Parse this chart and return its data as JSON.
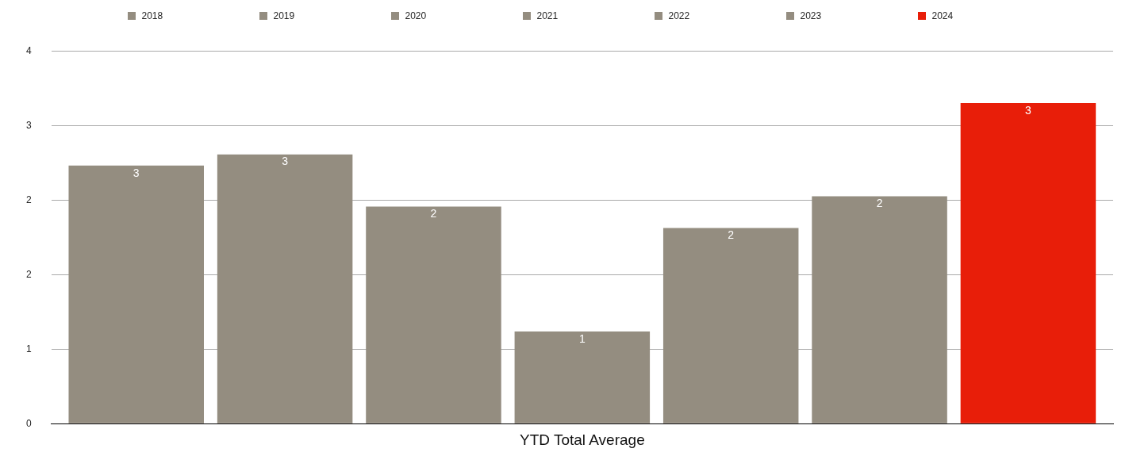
{
  "chart_data": {
    "type": "bar",
    "categories": [
      "YTD Total Average"
    ],
    "series": [
      {
        "name": "2018",
        "color": "#948d80",
        "values": [
          2.77
        ],
        "value_labels": [
          "3"
        ]
      },
      {
        "name": "2019",
        "color": "#948d80",
        "values": [
          2.89
        ],
        "value_labels": [
          "3"
        ]
      },
      {
        "name": "2020",
        "color": "#948d80",
        "values": [
          2.33
        ],
        "value_labels": [
          "2"
        ]
      },
      {
        "name": "2021",
        "color": "#948d80",
        "values": [
          0.99
        ],
        "value_labels": [
          "1"
        ]
      },
      {
        "name": "2022",
        "color": "#948d80",
        "values": [
          2.1
        ],
        "value_labels": [
          "2"
        ]
      },
      {
        "name": "2023",
        "color": "#948d80",
        "values": [
          2.44
        ],
        "value_labels": [
          "2"
        ]
      },
      {
        "name": "2024",
        "color": "#e81e09",
        "values": [
          3.44
        ],
        "value_labels": [
          "3"
        ]
      }
    ],
    "ylim": [
      0,
      4
    ],
    "yticks": [
      0,
      {
        "value": 0.8,
        "label": "1"
      },
      {
        "value": 1.6,
        "label": "2"
      },
      {
        "value": 2.4,
        "label": "2"
      },
      {
        "value": 3.2,
        "label": "3"
      },
      4
    ],
    "grid": "y",
    "legend": "top"
  }
}
